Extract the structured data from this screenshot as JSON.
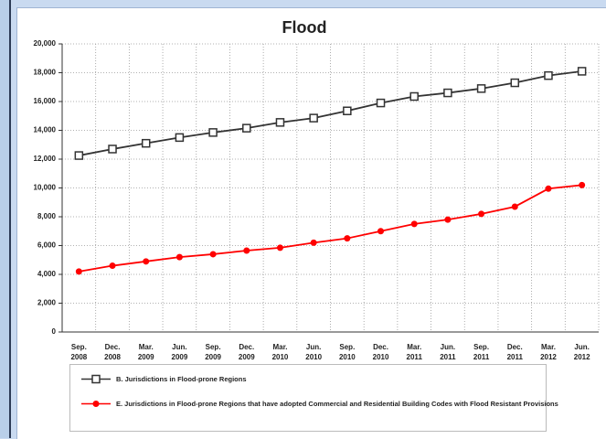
{
  "chart_data": {
    "type": "line",
    "title": "Flood",
    "categories": [
      "Sep. 2008",
      "Dec. 2008",
      "Mar. 2009",
      "Jun. 2009",
      "Sep. 2009",
      "Dec. 2009",
      "Mar. 2010",
      "Jun. 2010",
      "Sep. 2010",
      "Dec. 2010",
      "Mar. 2011",
      "Jun. 2011",
      "Sep. 2011",
      "Dec. 2011",
      "Mar. 2012",
      "Jun. 2012"
    ],
    "series": [
      {
        "name": "B. Jurisdictions in Flood-prone Regions",
        "color": "#333333",
        "marker": "square",
        "values": [
          12250,
          12700,
          13100,
          13500,
          13850,
          14150,
          14550,
          14850,
          15350,
          15900,
          16350,
          16600,
          16900,
          17300,
          17800,
          18100
        ]
      },
      {
        "name": "E. Jurisdictions in Flood-prone Regions that have adopted Commercial and Residential Building Codes with Flood Resistant Provisions",
        "color": "#ff0000",
        "marker": "circle",
        "values": [
          4200,
          4600,
          4900,
          5200,
          5400,
          5650,
          5850,
          6200,
          6500,
          7000,
          7500,
          7800,
          8200,
          8700,
          9950,
          10200
        ]
      }
    ],
    "ylim": [
      0,
      20000
    ],
    "yticks": [
      0,
      {
        "value": 2000,
        "label": "2,000"
      },
      {
        "value": 4000,
        "label": "4,000"
      },
      {
        "value": 6000,
        "label": "6,000"
      },
      {
        "value": 8000,
        "label": "8,000"
      },
      {
        "value": 10000,
        "label": "10,000"
      },
      {
        "value": 12000,
        "label": "12,000"
      },
      {
        "value": 14000,
        "label": "14,000"
      },
      {
        "value": 16000,
        "label": "16,000"
      },
      {
        "value": 18000,
        "label": "18,000"
      },
      {
        "value": 20000,
        "label": "20,000"
      }
    ],
    "grid": true,
    "legend": "bottom"
  }
}
